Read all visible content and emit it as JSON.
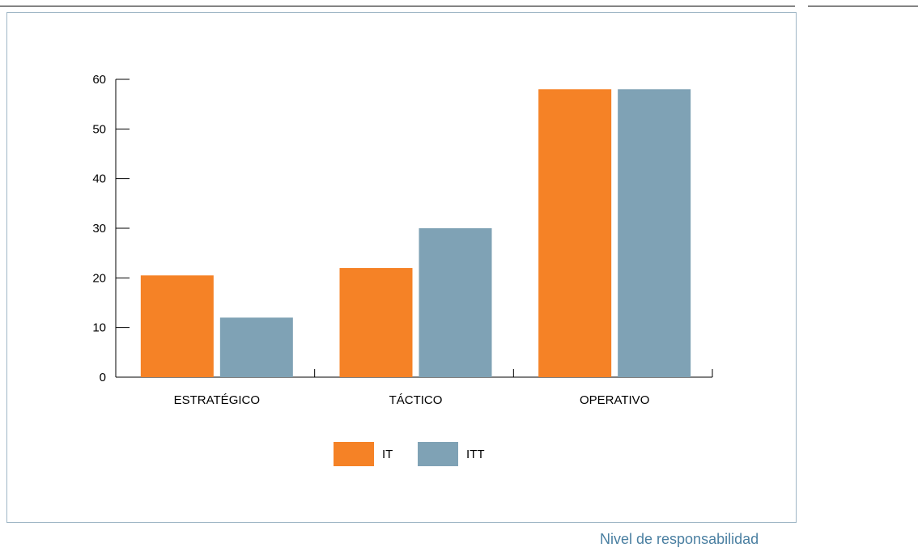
{
  "chart_data": {
    "type": "bar",
    "categories": [
      "ESTRATÉGICO",
      "TÁCTICO",
      "OPERATIVO"
    ],
    "series": [
      {
        "name": "IT",
        "values": [
          20.5,
          22,
          58
        ],
        "color": "#f58226"
      },
      {
        "name": "ITT",
        "values": [
          12,
          30,
          58
        ],
        "color": "#7fa2b5"
      }
    ],
    "yticks": [
      0,
      10,
      20,
      30,
      40,
      50,
      60
    ],
    "ylim": [
      0,
      60
    ],
    "legend_position": "bottom-center",
    "grid": false
  },
  "caption": "Nivel de responsabilidad"
}
